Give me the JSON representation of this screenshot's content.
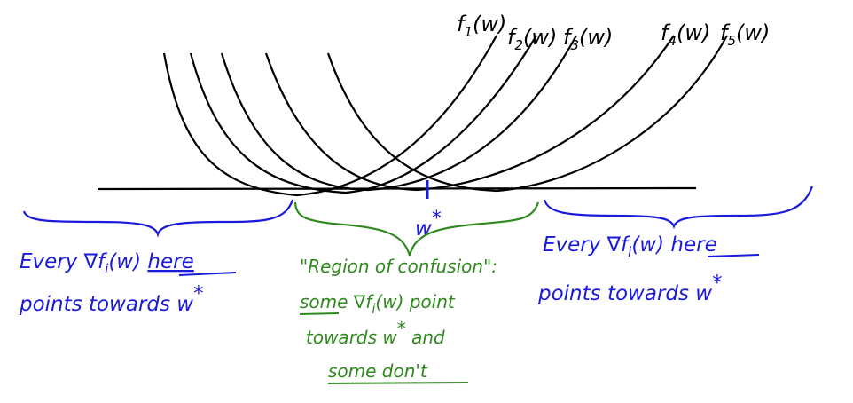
{
  "colors": {
    "curves": "#000000",
    "left_region": "#1a1adb",
    "right_region": "#1a1adb",
    "confusion_region": "#2f8a1e",
    "optimum_marker": "#1a1adb"
  },
  "curves": [
    {
      "fn": "f",
      "sub": "1",
      "arg": "(w)"
    },
    {
      "fn": "f",
      "sub": "2",
      "arg": "(w)"
    },
    {
      "fn": "f",
      "sub": "3",
      "arg": "(w)"
    },
    {
      "fn": "f",
      "sub": "4",
      "arg": "(w)"
    },
    {
      "fn": "f",
      "sub": "5",
      "arg": "(w)"
    }
  ],
  "optimum": {
    "base": "w",
    "star": "*"
  },
  "left_region": {
    "line1_a": "Every ∇f",
    "line1_sub": "i",
    "line1_b": "(w) ",
    "line1_c": "here",
    "line2": "points towards w",
    "line2_star": "*"
  },
  "right_region": {
    "line1_a": "Every ∇f",
    "line1_sub": "i",
    "line1_b": "(w) ",
    "line1_c": "here",
    "line2": "points towards w",
    "line2_star": "*"
  },
  "confusion_region": {
    "line1": "\"Region of confusion\":",
    "line2_a": "some",
    "line2_b": " ∇f",
    "line2_sub": "i",
    "line2_c": "(w) point",
    "line3_a": "towards w",
    "line3_star": "*",
    "line3_b": " and",
    "line4": "some don't"
  }
}
